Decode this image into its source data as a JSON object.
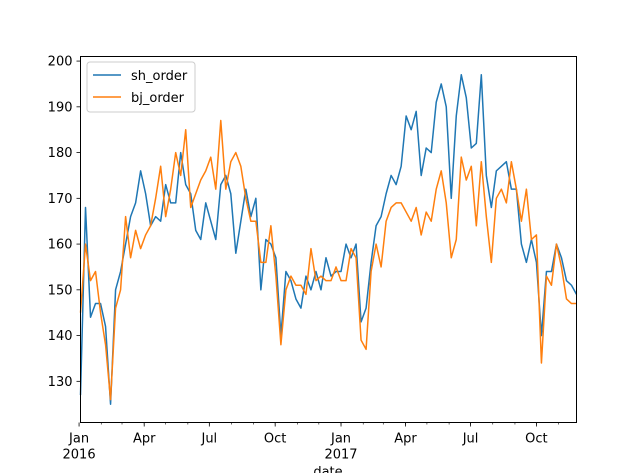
{
  "chart_data": {
    "type": "line",
    "title": "",
    "xlabel": "date",
    "ylabel": "",
    "ylim": [
      121,
      201
    ],
    "xlim": [
      "2016-01-03",
      "2017-11-26"
    ],
    "grid": false,
    "legend": "top-left",
    "yticks": [
      130,
      140,
      150,
      160,
      170,
      180,
      190,
      200
    ],
    "xticks": [
      {
        "date": "2016-01-01",
        "label": "Jan",
        "sublabel": "2016"
      },
      {
        "date": "2016-04-01",
        "label": "Apr",
        "sublabel": ""
      },
      {
        "date": "2016-07-01",
        "label": "Jul",
        "sublabel": ""
      },
      {
        "date": "2016-10-01",
        "label": "Oct",
        "sublabel": ""
      },
      {
        "date": "2017-01-01",
        "label": "Jan",
        "sublabel": "2017"
      },
      {
        "date": "2017-04-01",
        "label": "Apr",
        "sublabel": ""
      },
      {
        "date": "2017-07-01",
        "label": "Jul",
        "sublabel": ""
      },
      {
        "date": "2017-10-01",
        "label": "Oct",
        "sublabel": ""
      }
    ],
    "series": [
      {
        "name": "sh_order",
        "color": "#1f77b4",
        "points": [
          [
            "2016-01-03",
            127
          ],
          [
            "2016-01-10",
            168
          ],
          [
            "2016-01-17",
            144
          ],
          [
            "2016-01-24",
            147
          ],
          [
            "2016-01-31",
            147
          ],
          [
            "2016-02-07",
            142
          ],
          [
            "2016-02-14",
            125
          ],
          [
            "2016-02-21",
            150
          ],
          [
            "2016-02-28",
            154
          ],
          [
            "2016-03-06",
            160
          ],
          [
            "2016-03-13",
            166
          ],
          [
            "2016-03-20",
            169
          ],
          [
            "2016-03-27",
            176
          ],
          [
            "2016-04-03",
            171
          ],
          [
            "2016-04-10",
            164
          ],
          [
            "2016-04-17",
            166
          ],
          [
            "2016-04-24",
            165
          ],
          [
            "2016-05-01",
            173
          ],
          [
            "2016-05-08",
            169
          ],
          [
            "2016-05-15",
            169
          ],
          [
            "2016-05-22",
            180
          ],
          [
            "2016-05-29",
            173
          ],
          [
            "2016-06-05",
            171
          ],
          [
            "2016-06-12",
            163
          ],
          [
            "2016-06-19",
            161
          ],
          [
            "2016-06-26",
            169
          ],
          [
            "2016-07-03",
            165
          ],
          [
            "2016-07-10",
            161
          ],
          [
            "2016-07-17",
            173
          ],
          [
            "2016-07-24",
            175
          ],
          [
            "2016-07-31",
            171
          ],
          [
            "2016-08-07",
            158
          ],
          [
            "2016-08-14",
            165
          ],
          [
            "2016-08-21",
            172
          ],
          [
            "2016-08-28",
            166
          ],
          [
            "2016-09-04",
            170
          ],
          [
            "2016-09-11",
            150
          ],
          [
            "2016-09-18",
            161
          ],
          [
            "2016-09-25",
            160
          ],
          [
            "2016-10-02",
            157
          ],
          [
            "2016-10-09",
            140
          ],
          [
            "2016-10-16",
            154
          ],
          [
            "2016-10-23",
            152
          ],
          [
            "2016-10-30",
            148
          ],
          [
            "2016-11-06",
            146
          ],
          [
            "2016-11-13",
            153
          ],
          [
            "2016-11-20",
            150
          ],
          [
            "2016-11-27",
            154
          ],
          [
            "2016-12-04",
            150
          ],
          [
            "2016-12-11",
            157
          ],
          [
            "2016-12-18",
            153
          ],
          [
            "2016-12-25",
            154
          ],
          [
            "2017-01-01",
            154
          ],
          [
            "2017-01-08",
            160
          ],
          [
            "2017-01-15",
            157
          ],
          [
            "2017-01-22",
            160
          ],
          [
            "2017-01-29",
            143
          ],
          [
            "2017-02-05",
            146
          ],
          [
            "2017-02-12",
            156
          ],
          [
            "2017-02-19",
            164
          ],
          [
            "2017-02-26",
            166
          ],
          [
            "2017-03-05",
            171
          ],
          [
            "2017-03-12",
            175
          ],
          [
            "2017-03-19",
            173
          ],
          [
            "2017-03-26",
            177
          ],
          [
            "2017-04-02",
            188
          ],
          [
            "2017-04-09",
            185
          ],
          [
            "2017-04-16",
            189
          ],
          [
            "2017-04-23",
            175
          ],
          [
            "2017-04-30",
            181
          ],
          [
            "2017-05-07",
            180
          ],
          [
            "2017-05-14",
            191
          ],
          [
            "2017-05-21",
            195
          ],
          [
            "2017-05-28",
            190
          ],
          [
            "2017-06-04",
            170
          ],
          [
            "2017-06-11",
            188
          ],
          [
            "2017-06-18",
            197
          ],
          [
            "2017-06-25",
            192
          ],
          [
            "2017-07-02",
            181
          ],
          [
            "2017-07-09",
            182
          ],
          [
            "2017-07-16",
            197
          ],
          [
            "2017-07-23",
            175
          ],
          [
            "2017-07-30",
            168
          ],
          [
            "2017-08-06",
            176
          ],
          [
            "2017-08-13",
            177
          ],
          [
            "2017-08-20",
            178
          ],
          [
            "2017-08-27",
            172
          ],
          [
            "2017-09-03",
            172
          ],
          [
            "2017-09-10",
            160
          ],
          [
            "2017-09-17",
            156
          ],
          [
            "2017-09-24",
            161
          ],
          [
            "2017-10-01",
            156
          ],
          [
            "2017-10-08",
            140
          ],
          [
            "2017-10-15",
            154
          ],
          [
            "2017-10-22",
            154
          ],
          [
            "2017-10-29",
            160
          ],
          [
            "2017-11-05",
            157
          ],
          [
            "2017-11-12",
            152
          ],
          [
            "2017-11-19",
            151
          ],
          [
            "2017-11-26",
            149
          ]
        ]
      },
      {
        "name": "bj_order",
        "color": "#ff7f0e",
        "points": [
          [
            "2016-01-03",
            145
          ],
          [
            "2016-01-10",
            160
          ],
          [
            "2016-01-17",
            152
          ],
          [
            "2016-01-24",
            154
          ],
          [
            "2016-01-31",
            145
          ],
          [
            "2016-02-07",
            138
          ],
          [
            "2016-02-14",
            126
          ],
          [
            "2016-02-21",
            146
          ],
          [
            "2016-02-28",
            150
          ],
          [
            "2016-03-06",
            166
          ],
          [
            "2016-03-13",
            157
          ],
          [
            "2016-03-20",
            163
          ],
          [
            "2016-03-27",
            159
          ],
          [
            "2016-04-03",
            162
          ],
          [
            "2016-04-10",
            164
          ],
          [
            "2016-04-17",
            170
          ],
          [
            "2016-04-24",
            177
          ],
          [
            "2016-05-01",
            166
          ],
          [
            "2016-05-08",
            172
          ],
          [
            "2016-05-15",
            180
          ],
          [
            "2016-05-22",
            175
          ],
          [
            "2016-05-29",
            185
          ],
          [
            "2016-06-05",
            168
          ],
          [
            "2016-06-12",
            171
          ],
          [
            "2016-06-19",
            174
          ],
          [
            "2016-06-26",
            176
          ],
          [
            "2016-07-03",
            179
          ],
          [
            "2016-07-10",
            172
          ],
          [
            "2016-07-17",
            187
          ],
          [
            "2016-07-24",
            172
          ],
          [
            "2016-07-31",
            178
          ],
          [
            "2016-08-07",
            180
          ],
          [
            "2016-08-14",
            177
          ],
          [
            "2016-08-21",
            170
          ],
          [
            "2016-08-28",
            165
          ],
          [
            "2016-09-04",
            165
          ],
          [
            "2016-09-11",
            156
          ],
          [
            "2016-09-18",
            156
          ],
          [
            "2016-09-25",
            164
          ],
          [
            "2016-10-02",
            153
          ],
          [
            "2016-10-09",
            138
          ],
          [
            "2016-10-16",
            150
          ],
          [
            "2016-10-23",
            153
          ],
          [
            "2016-10-30",
            151
          ],
          [
            "2016-11-06",
            151
          ],
          [
            "2016-11-13",
            149
          ],
          [
            "2016-11-20",
            159
          ],
          [
            "2016-11-27",
            152
          ],
          [
            "2016-12-04",
            153
          ],
          [
            "2016-12-11",
            152
          ],
          [
            "2016-12-18",
            152
          ],
          [
            "2016-12-25",
            155
          ],
          [
            "2017-01-01",
            152
          ],
          [
            "2017-01-08",
            152
          ],
          [
            "2017-01-15",
            159
          ],
          [
            "2017-01-22",
            157
          ],
          [
            "2017-01-29",
            139
          ],
          [
            "2017-02-05",
            137
          ],
          [
            "2017-02-12",
            154
          ],
          [
            "2017-02-19",
            160
          ],
          [
            "2017-02-26",
            155
          ],
          [
            "2017-03-05",
            165
          ],
          [
            "2017-03-12",
            168
          ],
          [
            "2017-03-19",
            169
          ],
          [
            "2017-03-26",
            169
          ],
          [
            "2017-04-02",
            167
          ],
          [
            "2017-04-09",
            165
          ],
          [
            "2017-04-16",
            168
          ],
          [
            "2017-04-23",
            162
          ],
          [
            "2017-04-30",
            167
          ],
          [
            "2017-05-07",
            165
          ],
          [
            "2017-05-14",
            172
          ],
          [
            "2017-05-21",
            176
          ],
          [
            "2017-05-28",
            169
          ],
          [
            "2017-06-04",
            157
          ],
          [
            "2017-06-11",
            161
          ],
          [
            "2017-06-18",
            179
          ],
          [
            "2017-06-25",
            174
          ],
          [
            "2017-07-02",
            177
          ],
          [
            "2017-07-09",
            164
          ],
          [
            "2017-07-16",
            178
          ],
          [
            "2017-07-23",
            166
          ],
          [
            "2017-07-30",
            156
          ],
          [
            "2017-08-06",
            170
          ],
          [
            "2017-08-13",
            172
          ],
          [
            "2017-08-20",
            169
          ],
          [
            "2017-08-27",
            178
          ],
          [
            "2017-09-03",
            172
          ],
          [
            "2017-09-10",
            165
          ],
          [
            "2017-09-17",
            172
          ],
          [
            "2017-09-24",
            161
          ],
          [
            "2017-10-01",
            162
          ],
          [
            "2017-10-08",
            134
          ],
          [
            "2017-10-15",
            153
          ],
          [
            "2017-10-22",
            151
          ],
          [
            "2017-10-29",
            160
          ],
          [
            "2017-11-05",
            155
          ],
          [
            "2017-11-12",
            148
          ],
          [
            "2017-11-19",
            147
          ],
          [
            "2017-11-26",
            147
          ]
        ]
      }
    ]
  }
}
